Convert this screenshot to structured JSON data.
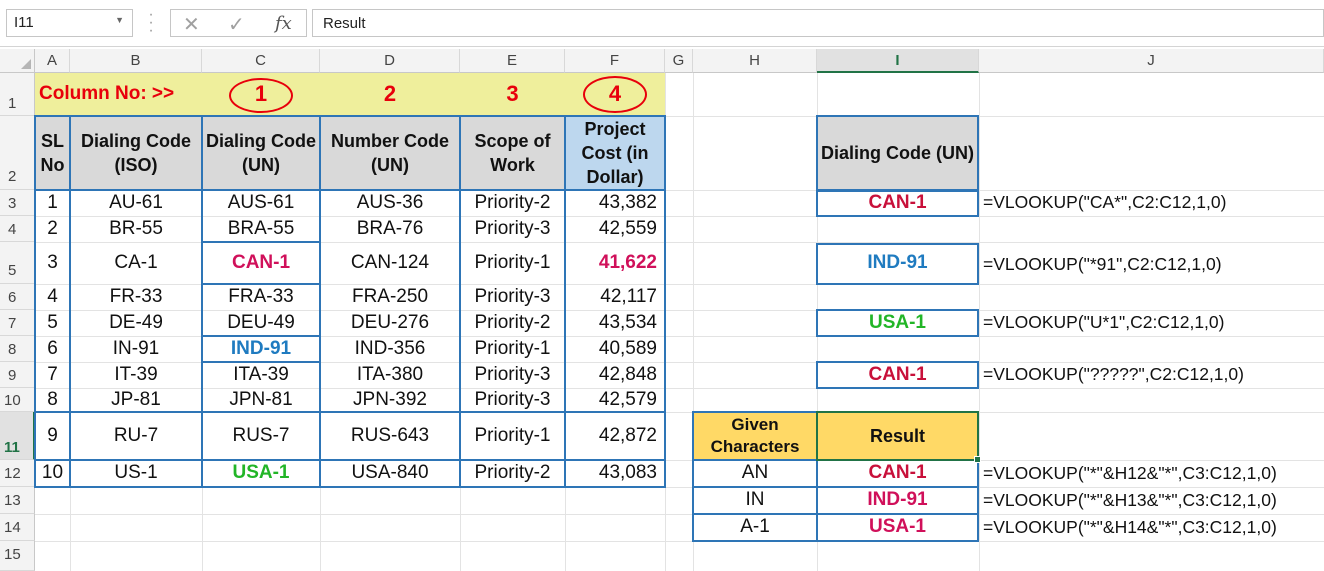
{
  "formula_bar": {
    "name_box": "I11",
    "cancel_icon": "✕",
    "enter_icon": "✓",
    "fx_label": "fx",
    "content": "Result"
  },
  "columns": [
    "A",
    "B",
    "C",
    "D",
    "E",
    "F",
    "G",
    "H",
    "I",
    "J"
  ],
  "rows": [
    "1",
    "2",
    "3",
    "4",
    "5",
    "6",
    "7",
    "8",
    "9",
    "10",
    "11",
    "12",
    "13",
    "14",
    "15"
  ],
  "row1": {
    "label": "Column No: >>",
    "nums": [
      "1",
      "2",
      "3",
      "4"
    ]
  },
  "main_table": {
    "headers": [
      "SL No",
      "Dialing Code (ISO)",
      "Dialing Code (UN)",
      "Number Code (UN)",
      "Scope of Work",
      "Project Cost (in Dollar)"
    ],
    "rows": [
      [
        "1",
        "AU-61",
        "AUS-61",
        "AUS-36",
        "Priority-2",
        "43,382"
      ],
      [
        "2",
        "BR-55",
        "BRA-55",
        "BRA-76",
        "Priority-3",
        "42,559"
      ],
      [
        "3",
        "CA-1",
        "CAN-1",
        "CAN-124",
        "Priority-1",
        "41,622"
      ],
      [
        "4",
        "FR-33",
        "FRA-33",
        "FRA-250",
        "Priority-3",
        "42,117"
      ],
      [
        "5",
        "DE-49",
        "DEU-49",
        "DEU-276",
        "Priority-2",
        "43,534"
      ],
      [
        "6",
        "IN-91",
        "IND-91",
        "IND-356",
        "Priority-1",
        "40,589"
      ],
      [
        "7",
        "IT-39",
        "ITA-39",
        "ITA-380",
        "Priority-3",
        "42,848"
      ],
      [
        "8",
        "JP-81",
        "JPN-81",
        "JPN-392",
        "Priority-3",
        "42,579"
      ],
      [
        "9",
        "RU-7",
        "RUS-7",
        "RUS-643",
        "Priority-1",
        "42,872"
      ],
      [
        "10",
        "US-1",
        "USA-1",
        "USA-840",
        "Priority-2",
        "43,083"
      ]
    ]
  },
  "lookup1": {
    "header": "Dialing Code (UN)",
    "results": [
      "CAN-1",
      "IND-91",
      "USA-1",
      "CAN-1"
    ],
    "formulas": [
      "=VLOOKUP(\"CA*\",C2:C12,1,0)",
      "=VLOOKUP(\"*91\",C2:C12,1,0)",
      "=VLOOKUP(\"U*1\",C2:C12,1,0)",
      "=VLOOKUP(\"?????\",C2:C12,1,0)"
    ]
  },
  "lookup2": {
    "header_given": "Given Characters",
    "header_result": "Result",
    "given": [
      "AN",
      "IN",
      "A-1"
    ],
    "results": [
      "CAN-1",
      "IND-91",
      "USA-1"
    ],
    "formulas": [
      "=VLOOKUP(\"*\"&H12&\"*\",C3:C12,1,0)",
      "=VLOOKUP(\"*\"&H13&\"*\",C3:C12,1,0)",
      "=VLOOKUP(\"*\"&H14&\"*\",C3:C12,1,0)"
    ]
  },
  "colors": {
    "red": "#e8000b",
    "table_border": "#2e75b6",
    "header_gray": "#d9d9d9",
    "project_cost_bg": "#bdd7ee",
    "gold": "#ffd966",
    "band_yellow": "#efef9c",
    "excel_green": "#217346"
  }
}
